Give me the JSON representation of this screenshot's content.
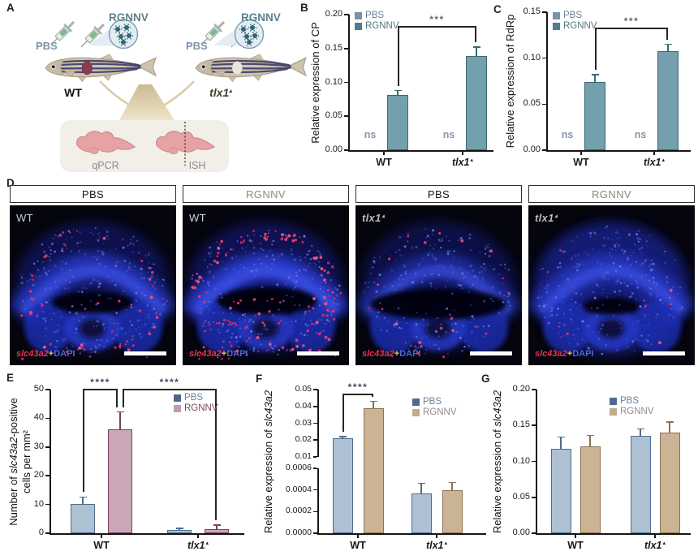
{
  "panels": {
    "a": "A",
    "b": "B",
    "c": "C",
    "d": "D",
    "e": "E",
    "f": "F",
    "g": "G"
  },
  "panel_a": {
    "pbs": "PBS",
    "rgnnv": "RGNNV",
    "fish1_label": "WT",
    "fish2_label": "tlx1",
    "fish2_sup": "▴",
    "qpcr": "qPCR",
    "ish": "ISH"
  },
  "panel_d": {
    "images": [
      {
        "header": "PBS",
        "header_color": "#151515",
        "corner": "WT",
        "corner_italic": false,
        "corner_sup": "",
        "corner_color": "#c6cbd2",
        "red_dots": 60,
        "variant": 0
      },
      {
        "header": "RGNNV",
        "header_color": "#8f897a",
        "corner": "WT",
        "corner_italic": false,
        "corner_sup": "",
        "corner_color": "#ccd1d8",
        "red_dots": 150,
        "variant": 1
      },
      {
        "header": "PBS",
        "header_color": "#151515",
        "corner": "tlx1",
        "corner_italic": true,
        "corner_sup": "▴",
        "corner_color": "#c0bcb2",
        "red_dots": 26,
        "variant": 2
      },
      {
        "header": "RGNNV",
        "header_color": "#8f897a",
        "corner": "tlx1",
        "corner_italic": true,
        "corner_sup": "▴",
        "corner_color": "#c0bcb2",
        "red_dots": 10,
        "variant": 3
      }
    ],
    "stain": {
      "gene": "slc43a2",
      "plus": "+",
      "dapi": "DAPI",
      "gene_color": "#e6344e",
      "plus_color": "#e9c94d",
      "dapi_color": "#5166d8"
    }
  },
  "chart_data": [
    {
      "id": "B",
      "type": "bar",
      "ylabel": [
        [
          {
            "t": "Relative expression of CP"
          }
        ]
      ],
      "ymin": 0,
      "ymax": 0.2,
      "yticks": [
        {
          "l": "0.20",
          "v": 0.2
        },
        {
          "l": "0.15",
          "v": 0.15
        },
        {
          "l": "0.10",
          "v": 0.1
        },
        {
          "l": "0.05",
          "v": 0.05
        },
        {
          "l": "0.00",
          "v": 0
        }
      ],
      "styles": {
        "PBS": {
          "fill": "#b0c2d4",
          "edge": "#4f6b8c"
        },
        "RGNNV": {
          "fill": "#74a0ad",
          "edge": "#3a6873"
        }
      },
      "legend": [
        {
          "label": "PBS",
          "swatch": "#7d90aa",
          "color": "#68809a"
        },
        {
          "label": "RGNNV",
          "swatch": "#4e7e8e",
          "color": "#527683"
        }
      ],
      "groups": [
        {
          "label": [
            {
              "t": "WT",
              "b": true
            }
          ],
          "bars": [
            {
              "series": "PBS",
              "ns": true
            },
            {
              "series": "RGNNV",
              "value": 0.081,
              "err": 0.007
            }
          ]
        },
        {
          "label": [
            {
              "t": "tlx1",
              "i": true,
              "b": true
            },
            {
              "t": "▴",
              "sup": true
            }
          ],
          "bars": [
            {
              "series": "PBS",
              "ns": true
            },
            {
              "series": "RGNNV",
              "value": 0.139,
              "err": 0.013
            }
          ]
        }
      ],
      "brackets": [
        {
          "from": [
            0,
            1
          ],
          "to": [
            1,
            1
          ],
          "label": "***"
        }
      ],
      "ns_label": "ns",
      "ns_color": "#8595ae",
      "sig_color": "#5a6e78"
    },
    {
      "id": "C",
      "type": "bar",
      "ylabel": [
        [
          {
            "t": "Relative expression of RdRp"
          }
        ]
      ],
      "ymin": 0,
      "ymax": 0.15,
      "yticks": [
        {
          "l": "0.15",
          "v": 0.15
        },
        {
          "l": "0.10",
          "v": 0.1
        },
        {
          "l": "0.05",
          "v": 0.05
        },
        {
          "l": "0.00",
          "v": 0
        }
      ],
      "styles": {
        "PBS": {
          "fill": "#b0c2d4",
          "edge": "#4f6b8c"
        },
        "RGNNV": {
          "fill": "#74a0ad",
          "edge": "#3a6873"
        }
      },
      "legend": [
        {
          "label": "PBS",
          "swatch": "#7d90aa",
          "color": "#68809a"
        },
        {
          "label": "RGNNV",
          "swatch": "#4e7e8e",
          "color": "#527683"
        }
      ],
      "groups": [
        {
          "label": [
            {
              "t": "WT",
              "b": true
            }
          ],
          "bars": [
            {
              "series": "PBS",
              "ns": true
            },
            {
              "series": "RGNNV",
              "value": 0.074,
              "err": 0.008
            }
          ]
        },
        {
          "label": [
            {
              "t": "tlx1",
              "i": true,
              "b": true
            },
            {
              "t": "▴",
              "sup": true
            }
          ],
          "bars": [
            {
              "series": "PBS",
              "ns": true
            },
            {
              "series": "RGNNV",
              "value": 0.108,
              "err": 0.007
            }
          ]
        }
      ],
      "brackets": [
        {
          "from": [
            0,
            1
          ],
          "to": [
            1,
            1
          ],
          "label": "***"
        }
      ],
      "ns_label": "ns",
      "ns_color": "#8595ae",
      "sig_color": "#5a6e78"
    },
    {
      "id": "E",
      "type": "bar",
      "ylabel": [
        [
          {
            "t": "Number of "
          },
          {
            "t": "slc43a2",
            "i": true
          },
          {
            "t": "-positive"
          }
        ],
        [
          {
            "t": "cells per mm²"
          }
        ]
      ],
      "ymin": 0,
      "ymax": 50,
      "yticks": [
        {
          "l": "50",
          "v": 50
        },
        {
          "l": "40",
          "v": 40
        },
        {
          "l": "30",
          "v": 30
        },
        {
          "l": "20",
          "v": 20
        },
        {
          "l": "10",
          "v": 10
        },
        {
          "l": "0",
          "v": 0
        }
      ],
      "styles": {
        "PBS": {
          "fill": "#aec1d3",
          "edge": "#4f6b8c"
        },
        "RGNNV": {
          "fill": "#c9a7b9",
          "edge": "#7c3f5e"
        }
      },
      "legend": [
        {
          "label": "PBS",
          "swatch": "#50658a",
          "color": "#68809a"
        },
        {
          "label": "RGNNV",
          "swatch": "#c49cb0",
          "color": "#7c4660"
        }
      ],
      "groups": [
        {
          "label": [
            {
              "t": "WT",
              "b": true
            }
          ],
          "bars": [
            {
              "series": "PBS",
              "value": 10.2,
              "err": 2.4
            },
            {
              "series": "RGNNV",
              "value": 36.2,
              "err": 6.0
            }
          ]
        },
        {
          "label": [
            {
              "t": "tlx1",
              "i": true,
              "b": true
            },
            {
              "t": "▴",
              "sup": true
            }
          ],
          "bars": [
            {
              "series": "PBS",
              "value": 1.0,
              "err": 0.7
            },
            {
              "series": "RGNNV",
              "value": 1.4,
              "err": 1.4
            }
          ]
        }
      ],
      "brackets": [
        {
          "from": [
            0,
            0
          ],
          "to": [
            0,
            1
          ],
          "label": "****",
          "dx2": -3
        },
        {
          "from": [
            0,
            1
          ],
          "to": [
            1,
            1
          ],
          "label": "****",
          "dx1": 3
        }
      ],
      "ns_label": "ns",
      "ns_color": "#8595ae",
      "sig_color": "#454b60"
    },
    {
      "id": "F",
      "type": "bar",
      "ylabel": [
        [
          {
            "t": "Relative expression of "
          },
          {
            "t": "slc43a2",
            "i": true
          }
        ]
      ],
      "ymin": 0,
      "ymax": 0.05,
      "yticks": [
        {
          "l": "0.05",
          "v": 0.05
        },
        {
          "l": "0.04",
          "v": 0.04
        },
        {
          "l": "0.03",
          "v": 0.03
        },
        {
          "l": "0.02",
          "v": 0.02
        },
        {
          "l": "0.01",
          "v": 0.01
        },
        {
          "l": "0.0006",
          "v": 0.0006
        },
        {
          "l": "0.0004",
          "v": 0.0004
        },
        {
          "l": "0.0002",
          "v": 0.0002
        },
        {
          "l": "0.0000",
          "v": 0
        }
      ],
      "styles": {
        "PBS": {
          "fill": "#aec1d3",
          "edge": "#4f6b8c"
        },
        "RGNNV": {
          "fill": "#cbb495",
          "edge": "#8d7351"
        }
      },
      "legend": [
        {
          "label": "PBS",
          "swatch": "#4f6b8c",
          "color": "#68809a"
        },
        {
          "label": "RGNNV",
          "swatch": "#c2ab8b",
          "color": "#8e8e8e"
        }
      ],
      "groups": [
        {
          "label": [
            {
              "t": "WT",
              "b": true
            }
          ],
          "bars": [
            {
              "series": "PBS",
              "value": 0.021,
              "err": 0.001
            },
            {
              "series": "RGNNV",
              "value": 0.039,
              "err": 0.004
            }
          ]
        },
        {
          "label": [
            {
              "t": "tlx1",
              "i": true,
              "b": true
            },
            {
              "t": "▴",
              "sup": true
            }
          ],
          "bars": [
            {
              "series": "PBS",
              "value": 0.00037,
              "err": 9e-05
            },
            {
              "series": "RGNNV",
              "value": 0.0004,
              "err": 7e-05
            }
          ]
        }
      ],
      "brackets": [
        {
          "from": [
            0,
            0
          ],
          "to": [
            0,
            1
          ],
          "label": "****"
        }
      ],
      "ns_label": "ns",
      "ns_color": "#8595ae",
      "sig_color": "#454b60"
    },
    {
      "id": "G",
      "type": "bar",
      "ylabel": [
        [
          {
            "t": "Relative expression of "
          },
          {
            "t": "slc43a2",
            "i": true
          }
        ]
      ],
      "ymin": 0,
      "ymax": 0.2,
      "yticks": [
        {
          "l": "0.20",
          "v": 0.2
        },
        {
          "l": "0.15",
          "v": 0.15
        },
        {
          "l": "0.10",
          "v": 0.1
        },
        {
          "l": "0.05",
          "v": 0.05
        },
        {
          "l": "0.00",
          "v": 0
        }
      ],
      "styles": {
        "PBS": {
          "fill": "#aec1d3",
          "edge": "#4f6b8c"
        },
        "RGNNV": {
          "fill": "#cbb495",
          "edge": "#8d7351"
        }
      },
      "legend": [
        {
          "label": "PBS",
          "swatch": "#4f6b8c",
          "color": "#68809a"
        },
        {
          "label": "RGNNV",
          "swatch": "#c2ab8b",
          "color": "#8e8e8e"
        }
      ],
      "groups": [
        {
          "label": [
            {
              "t": "WT",
              "b": true
            }
          ],
          "bars": [
            {
              "series": "PBS",
              "value": 0.118,
              "err": 0.016
            },
            {
              "series": "RGNNV",
              "value": 0.121,
              "err": 0.015
            }
          ]
        },
        {
          "label": [
            {
              "t": "tlx1",
              "i": true,
              "b": true
            },
            {
              "t": "▴",
              "sup": true
            }
          ],
          "bars": [
            {
              "series": "PBS",
              "value": 0.136,
              "err": 0.009
            },
            {
              "series": "RGNNV",
              "value": 0.14,
              "err": 0.015
            }
          ]
        }
      ],
      "brackets": [],
      "ns_label": "ns",
      "ns_color": "#8595ae",
      "sig_color": "#454b60"
    }
  ]
}
